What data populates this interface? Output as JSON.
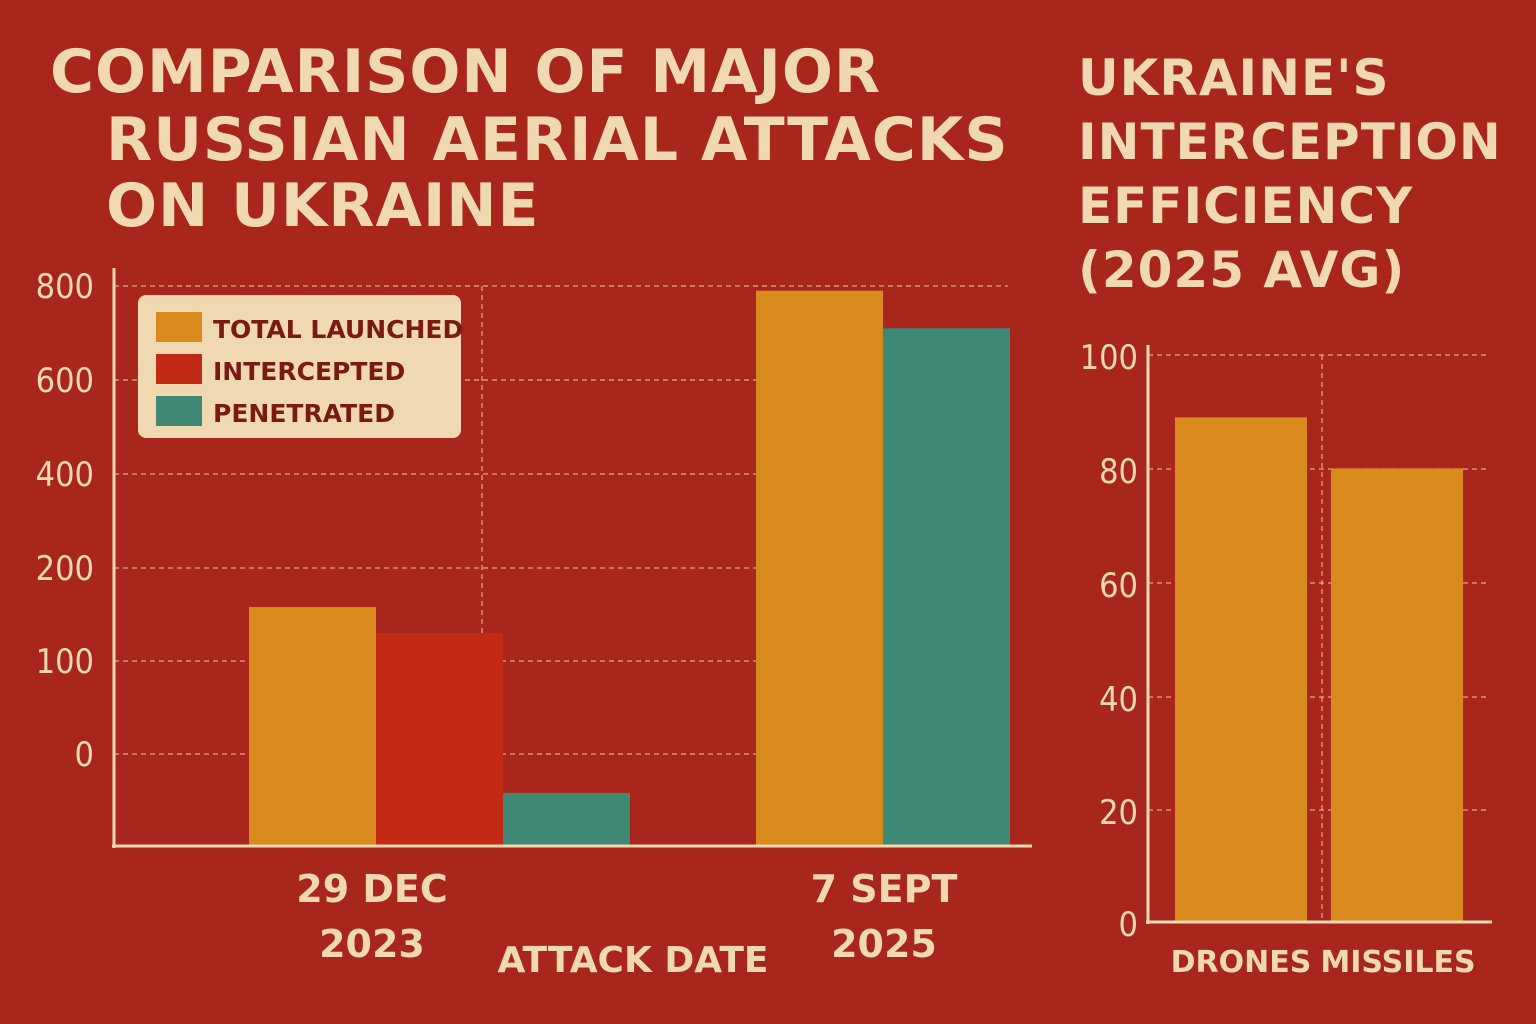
{
  "left_title": [
    "COMPARISON OF MAJOR",
    "RUSSIAN AERIAL ATTACKS",
    "ON UKRAINE"
  ],
  "right_title": [
    "UKRAINE'S",
    "INTERCEPTION",
    "EFFICIENCY",
    "(2025 AVG)"
  ],
  "colors": {
    "background": "#a8261b",
    "text": "#f0d9b0",
    "total_launched": "#d98a1c",
    "intercepted": "#c22a16",
    "penetrated": "#3e8874",
    "legend_bg": "#f0d9b0"
  },
  "chart_data": [
    {
      "type": "bar",
      "xlabel": "ATTACK DATE",
      "ylabel": "",
      "yticks": [
        "800",
        "600",
        "400",
        "200",
        "100",
        "0"
      ],
      "categories": [
        [
          "29 DEC",
          "2023"
        ],
        [
          "7 SEPT",
          "2025"
        ]
      ],
      "series": [
        {
          "name": "TOTAL LAUNCHED",
          "values": [
            158,
            810
          ]
        },
        {
          "name": "INTERCEPTED",
          "values": [
            130,
            null
          ]
        },
        {
          "name": "PENETRATED",
          "values": [
            -80,
            710
          ]
        }
      ],
      "grid": true,
      "legend": "top-left"
    },
    {
      "type": "bar",
      "xlabel": "",
      "ylabel": "",
      "yticks": [
        "100",
        "80",
        "60",
        "40",
        "20",
        "0"
      ],
      "ylim": [
        0,
        100
      ],
      "categories": [
        "DRONES",
        "MISSILES"
      ],
      "values": [
        89,
        80
      ],
      "grid": true
    }
  ]
}
